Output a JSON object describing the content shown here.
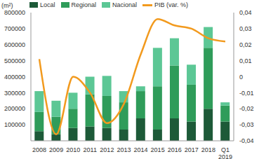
{
  "chart_data": {
    "type": "bar",
    "stacked": true,
    "y_label": "(m²)",
    "categories": [
      "2008",
      "2009",
      "2010",
      "2011",
      "2012",
      "2013",
      "2014",
      "2015",
      "2016",
      "2017",
      "2018",
      "Q1 2019"
    ],
    "series": [
      {
        "name": "Local",
        "color": "#1d5a38",
        "values": [
          60000,
          40000,
          80000,
          90000,
          80000,
          70000,
          140000,
          70000,
          140000,
          120000,
          200000,
          120000
        ]
      },
      {
        "name": "Regional",
        "color": "#2f9c5a",
        "values": [
          120000,
          110000,
          120000,
          200000,
          200000,
          170000,
          170000,
          270000,
          330000,
          230000,
          380000,
          100000
        ]
      },
      {
        "name": "Nacional",
        "color": "#5cc795",
        "values": [
          130000,
          100000,
          100000,
          110000,
          125000,
          70000,
          30000,
          240000,
          170000,
          125000,
          130000,
          20000
        ]
      },
      {
        "name": "PIB (var. %)",
        "type": "line",
        "axis": "y2",
        "color": "#f29a1e",
        "values": [
          0.011,
          -0.036,
          0.0,
          -0.01,
          -0.029,
          -0.017,
          0.014,
          0.036,
          0.032,
          0.03,
          0.024,
          0.022
        ]
      }
    ],
    "ylim": [
      0,
      800000
    ],
    "yticks": [
      0,
      100000,
      200000,
      300000,
      400000,
      500000,
      600000,
      700000,
      800000
    ],
    "y2lim": [
      -0.04,
      0.04
    ],
    "y2ticks": [
      {
        "value": -0.04,
        "label": "-0,04"
      },
      {
        "value": -0.03,
        "label": "-0,03"
      },
      {
        "value": -0.02,
        "label": "-0,02"
      },
      {
        "value": -0.01,
        "label": "-0,01"
      },
      {
        "value": 0,
        "label": "0"
      },
      {
        "value": 0.01,
        "label": "0,01"
      },
      {
        "value": 0.02,
        "label": "0,02"
      },
      {
        "value": 0.03,
        "label": "0,03"
      },
      {
        "value": 0.04,
        "label": "0,04"
      }
    ],
    "legend": "top"
  }
}
